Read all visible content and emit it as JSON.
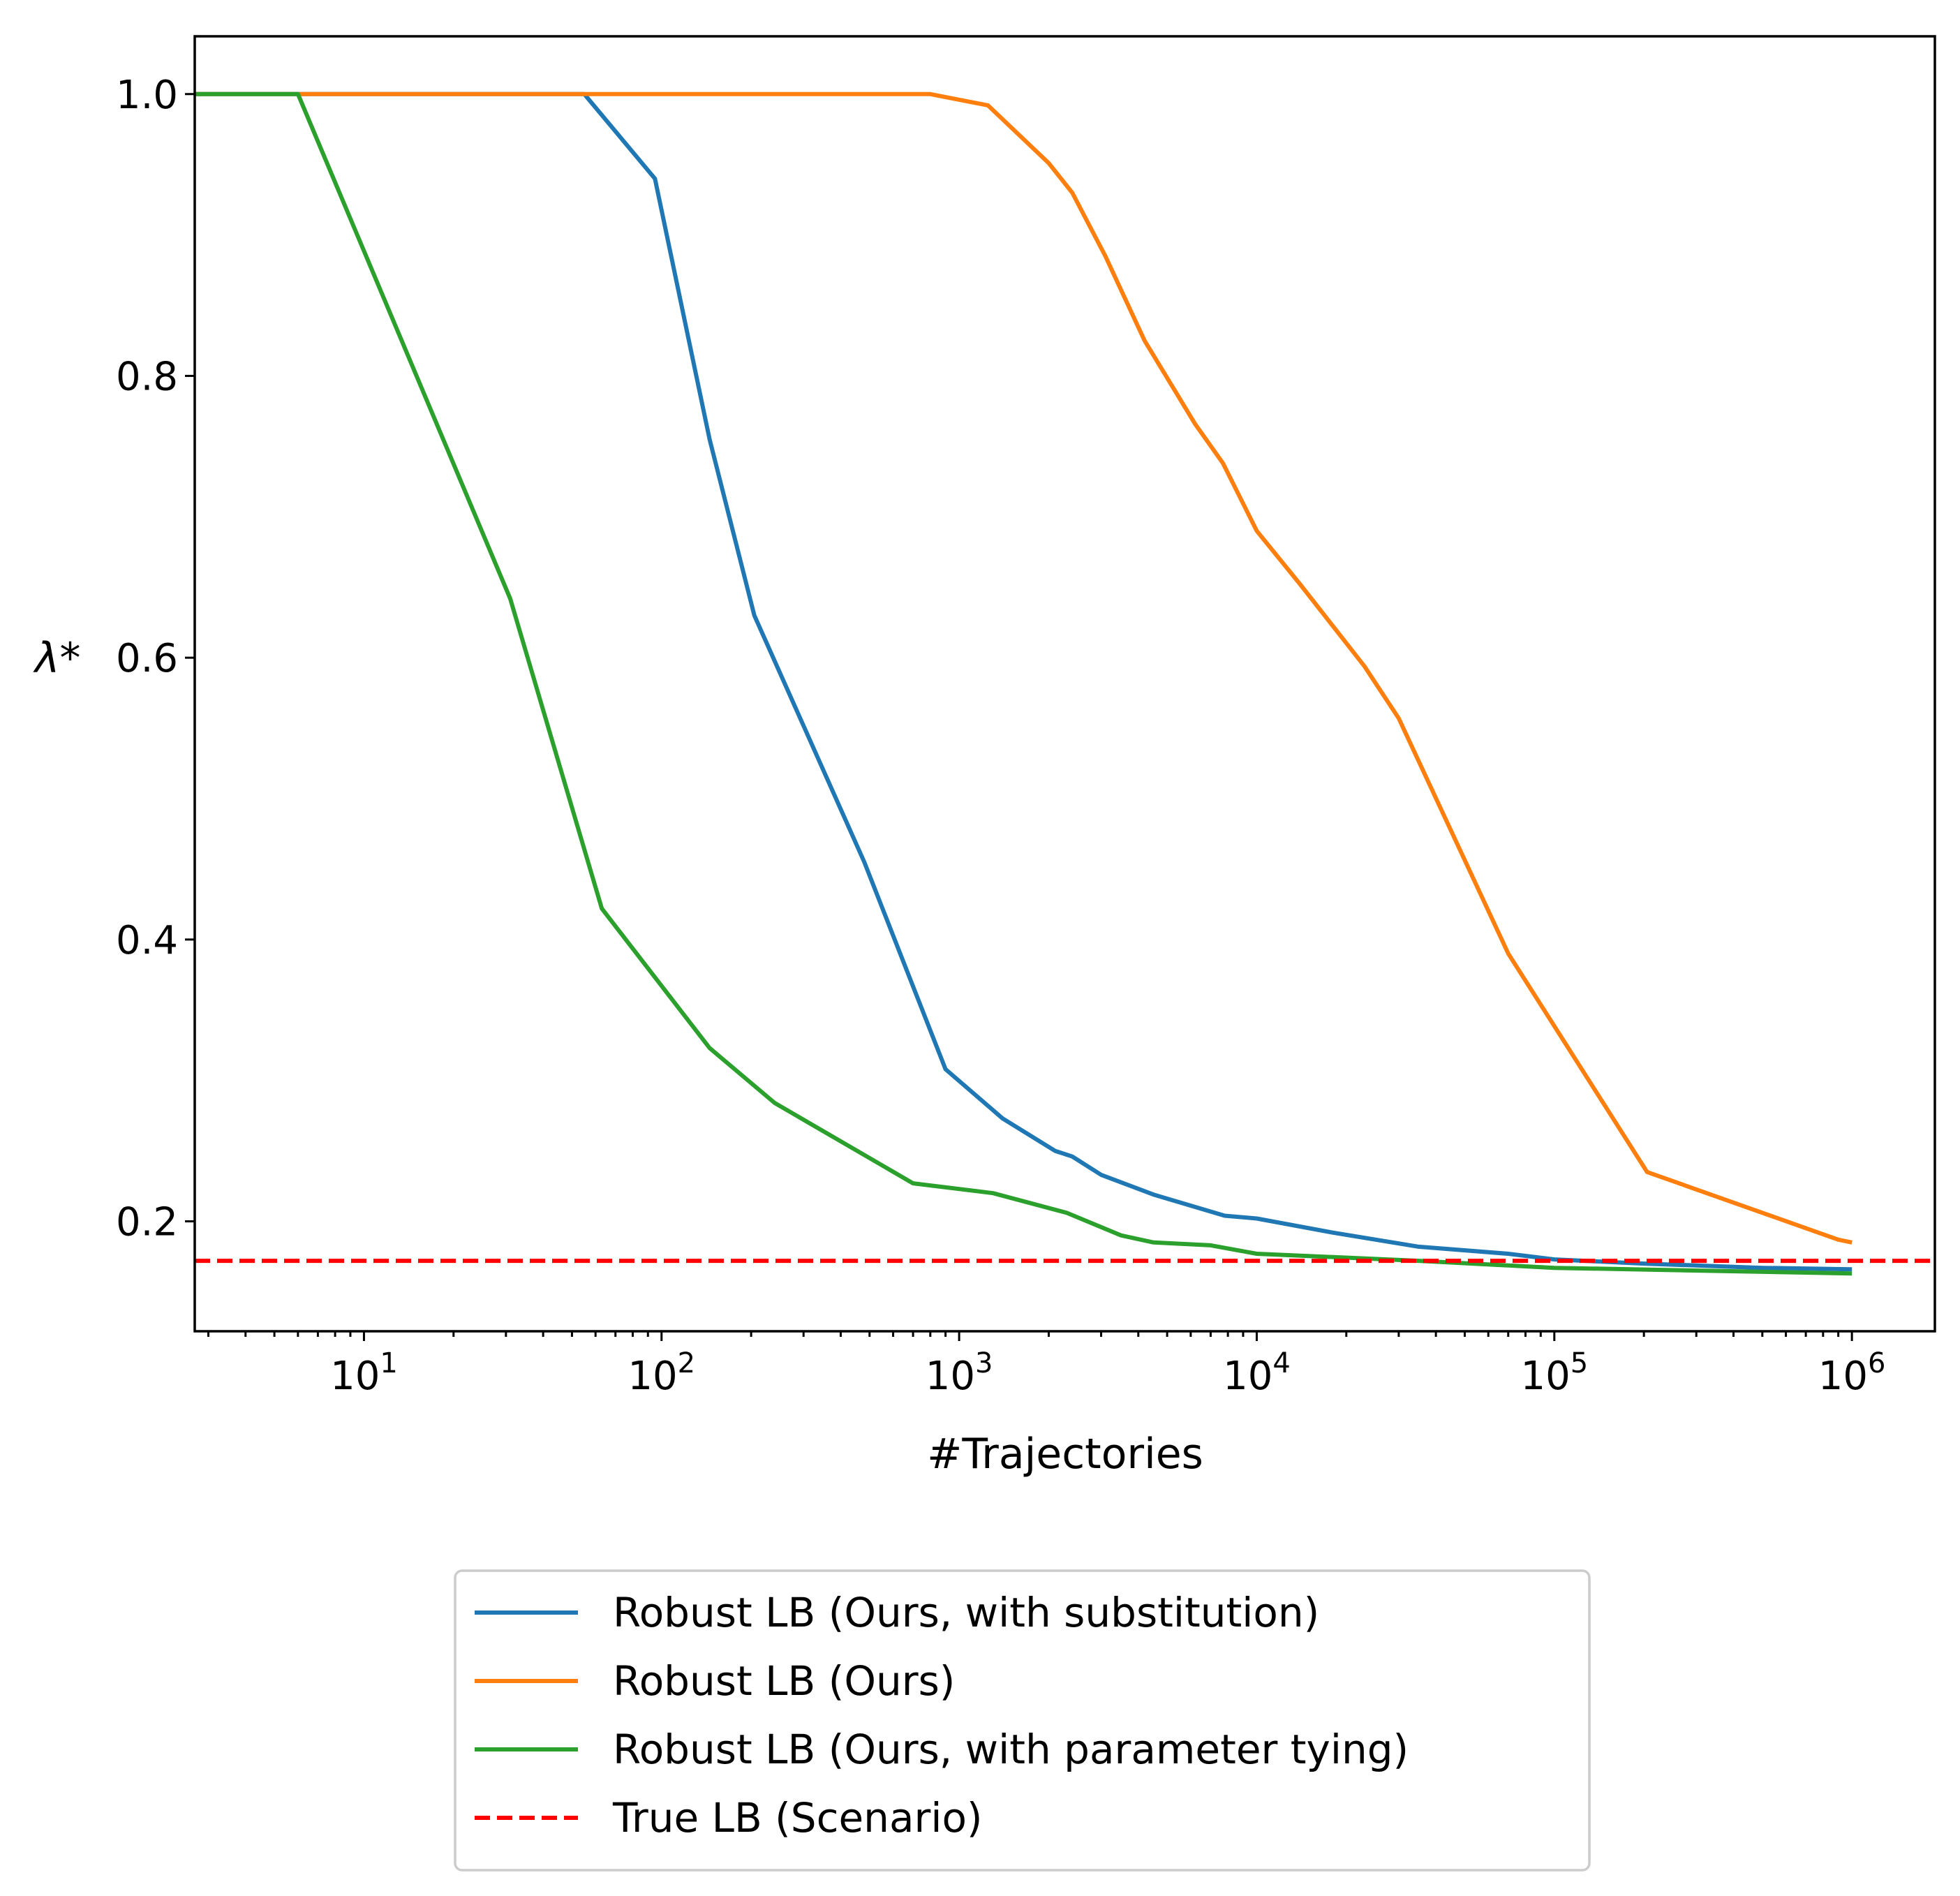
{
  "chart_data": {
    "type": "line",
    "xscale": "log",
    "xlabel": "#Trajectories",
    "ylabel": "λ*",
    "xlim": [
      2.7,
      1900000
    ],
    "ylim": [
      0.122,
      1.041
    ],
    "grid": false,
    "legend_position": "below-center",
    "x_ticks": [
      {
        "value": 10,
        "base": "10",
        "exp": "1"
      },
      {
        "value": 100,
        "base": "10",
        "exp": "2"
      },
      {
        "value": 1000,
        "base": "10",
        "exp": "3"
      },
      {
        "value": 10000,
        "base": "10",
        "exp": "4"
      },
      {
        "value": 100000,
        "base": "10",
        "exp": "5"
      },
      {
        "value": 1000000,
        "base": "10",
        "exp": "6"
      }
    ],
    "y_ticks": [
      {
        "value": 0.2,
        "label": "0.2"
      },
      {
        "value": 0.4,
        "label": "0.4"
      },
      {
        "value": 0.6,
        "label": "0.6"
      },
      {
        "value": 0.8,
        "label": "0.8"
      },
      {
        "value": 1.0,
        "label": "1.0"
      }
    ],
    "series": [
      {
        "name": "Robust LB (Ours, with substitution)",
        "color": "#1f77b4",
        "style": "solid",
        "x": [
          2.7,
          55,
          95,
          145,
          205,
          480,
          900,
          1400,
          2100,
          2400,
          3000,
          4500,
          7800,
          10000,
          18000,
          35000,
          70000,
          100000,
          200000,
          500000,
          1000000
        ],
        "y": [
          1.0,
          1.0,
          0.94,
          0.755,
          0.63,
          0.455,
          0.308,
          0.273,
          0.25,
          0.246,
          0.233,
          0.219,
          0.204,
          0.202,
          0.192,
          0.182,
          0.177,
          0.173,
          0.17,
          0.167,
          0.166
        ]
      },
      {
        "name": "Robust LB (Ours)",
        "color": "#ff7f0e",
        "style": "solid",
        "x": [
          2.7,
          800,
          1250,
          2000,
          2400,
          3100,
          4200,
          6200,
          7700,
          10000,
          14000,
          23000,
          30000,
          70000,
          205000,
          900000,
          1000000
        ],
        "y": [
          1.0,
          1.0,
          0.992,
          0.951,
          0.93,
          0.885,
          0.825,
          0.766,
          0.738,
          0.69,
          0.652,
          0.594,
          0.557,
          0.39,
          0.235,
          0.187,
          0.185
        ]
      },
      {
        "name": "Robust LB (Ours, with parameter tying)",
        "color": "#2ca02c",
        "style": "solid",
        "x": [
          2.7,
          6,
          31,
          63,
          145,
          240,
          700,
          1300,
          2300,
          3500,
          4500,
          7000,
          10000,
          35000,
          100000,
          1000000
        ],
        "y": [
          1.0,
          1.0,
          0.642,
          0.422,
          0.323,
          0.284,
          0.227,
          0.22,
          0.206,
          0.19,
          0.185,
          0.183,
          0.177,
          0.172,
          0.167,
          0.163
        ]
      },
      {
        "name": "True LB (Scenario)",
        "color": "#ff0000",
        "style": "dashed",
        "x": [
          2.7,
          1900000
        ],
        "y": [
          0.172,
          0.172
        ]
      }
    ]
  }
}
